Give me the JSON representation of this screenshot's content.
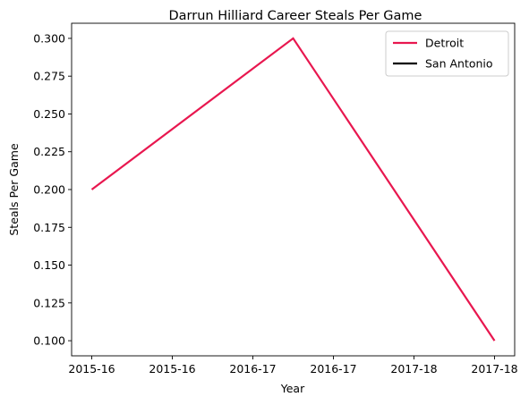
{
  "chart_data": {
    "type": "line",
    "title": "Darrun Hilliard Career Steals Per Game",
    "xlabel": "Year",
    "ylabel": "Steals Per Game",
    "x_tick_labels": [
      "2015-16",
      "2015-16",
      "2016-17",
      "2016-17",
      "2017-18",
      "2017-18"
    ],
    "y_tick_labels": [
      "0.100",
      "0.125",
      "0.150",
      "0.175",
      "0.200",
      "0.225",
      "0.250",
      "0.275",
      "0.300"
    ],
    "ylim": [
      0.09,
      0.31
    ],
    "y_ticks": [
      0.1,
      0.125,
      0.15,
      0.175,
      0.2,
      0.225,
      0.25,
      0.275,
      0.3
    ],
    "x_ticks": [
      0,
      0.5,
      1,
      1.5,
      2,
      2.5
    ],
    "xlim": [
      -0.125,
      2.625
    ],
    "grid": false,
    "legend_position": "top-right",
    "series": [
      {
        "name": "Detroit",
        "color": "#e8174f",
        "points": [
          {
            "x": 0,
            "y": 0.2
          },
          {
            "x": 1.25,
            "y": 0.3
          },
          {
            "x": 2.5,
            "y": 0.1
          }
        ]
      },
      {
        "name": "San Antonio",
        "color": "#000000",
        "points": []
      }
    ]
  }
}
